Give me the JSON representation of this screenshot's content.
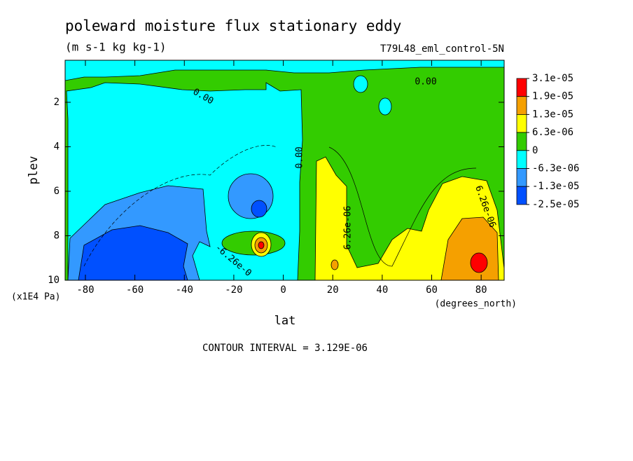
{
  "chart_data": {
    "type": "contour",
    "title": "poleward moisture flux stationary eddy",
    "subtitle": "(m s-1 kg kg-1)",
    "dataset": "T79L48_eml_control-5N",
    "xlabel": "lat",
    "xunits": "(degrees_north)",
    "ylabel": "plev",
    "yunits": "(x1E4 Pa)",
    "footnote": "CONTOUR INTERVAL = 3.129E-06",
    "xlim": [
      -88.2,
      89.3
    ],
    "xticks": [
      -80,
      -60,
      -40,
      -20,
      0,
      20,
      40,
      60,
      80
    ],
    "ylim": [
      10,
      0.11
    ],
    "yticks": [
      2,
      4,
      6,
      8,
      10
    ],
    "annotations": [
      "0.00",
      "0.00",
      "0.00",
      "6.26e-06",
      "6.26e-06",
      "-6.26e-0"
    ],
    "colorbar": {
      "colors": [
        "#ff0000",
        "#f5a000",
        "#ffff00",
        "#33cc00",
        "#00ffff",
        "#3399ff",
        "#0050ff"
      ],
      "ticks": [
        {
          "value": 3.1e-05,
          "label": "3.1e-05"
        },
        {
          "value": 1.9e-05,
          "label": "1.9e-05"
        },
        {
          "value": 1.3e-05,
          "label": "1.3e-05"
        },
        {
          "value": 6.3e-06,
          "label": "6.3e-06"
        },
        0,
        {
          "value": -6.3e-06,
          "label": "-6.3e-06"
        },
        {
          "value": -1.3e-05,
          "label": "-1.3e-05"
        },
        {
          "value": -2.5e-05,
          "label": "-2.5e-05"
        }
      ]
    }
  }
}
